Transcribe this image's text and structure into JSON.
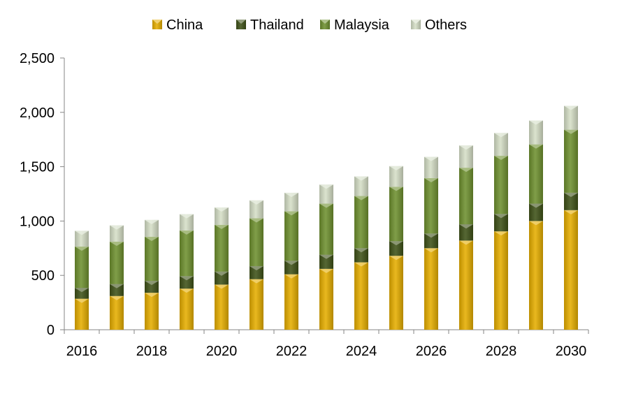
{
  "chart_data": {
    "type": "bar",
    "stacked": true,
    "title": "",
    "xlabel": "",
    "ylabel": "",
    "categories": [
      "2016",
      "2017",
      "2018",
      "2019",
      "2020",
      "2021",
      "2022",
      "2023",
      "2024",
      "2025",
      "2026",
      "2027",
      "2028",
      "2029",
      "2030"
    ],
    "x_tick_labels": [
      "2016",
      "2018",
      "2020",
      "2022",
      "2024",
      "2026",
      "2028",
      "2030"
    ],
    "ylim": [
      0,
      2500
    ],
    "y_ticks": [
      0,
      500,
      1000,
      1500,
      2000,
      2500
    ],
    "y_tick_labels": [
      "0",
      "500",
      "1,000",
      "1,500",
      "2,000",
      "2,500"
    ],
    "grid": false,
    "legend_position": "top",
    "series": [
      {
        "name": "China",
        "color": "#E6AE00",
        "values": [
          285,
          310,
          340,
          378,
          415,
          465,
          510,
          560,
          620,
          680,
          750,
          820,
          905,
          1000,
          1100
        ]
      },
      {
        "name": "Thailand",
        "color": "#3F5218",
        "values": [
          100,
          110,
          110,
          115,
          120,
          120,
          125,
          130,
          130,
          135,
          135,
          150,
          160,
          160,
          160
        ]
      },
      {
        "name": "Malaysia",
        "color": "#6F9130",
        "values": [
          380,
          390,
          405,
          420,
          430,
          440,
          455,
          470,
          480,
          500,
          510,
          520,
          535,
          545,
          580
        ]
      },
      {
        "name": "Others",
        "color": "#D6DFC7",
        "values": [
          145,
          150,
          155,
          150,
          160,
          165,
          170,
          175,
          180,
          190,
          195,
          205,
          210,
          220,
          220
        ]
      }
    ]
  }
}
